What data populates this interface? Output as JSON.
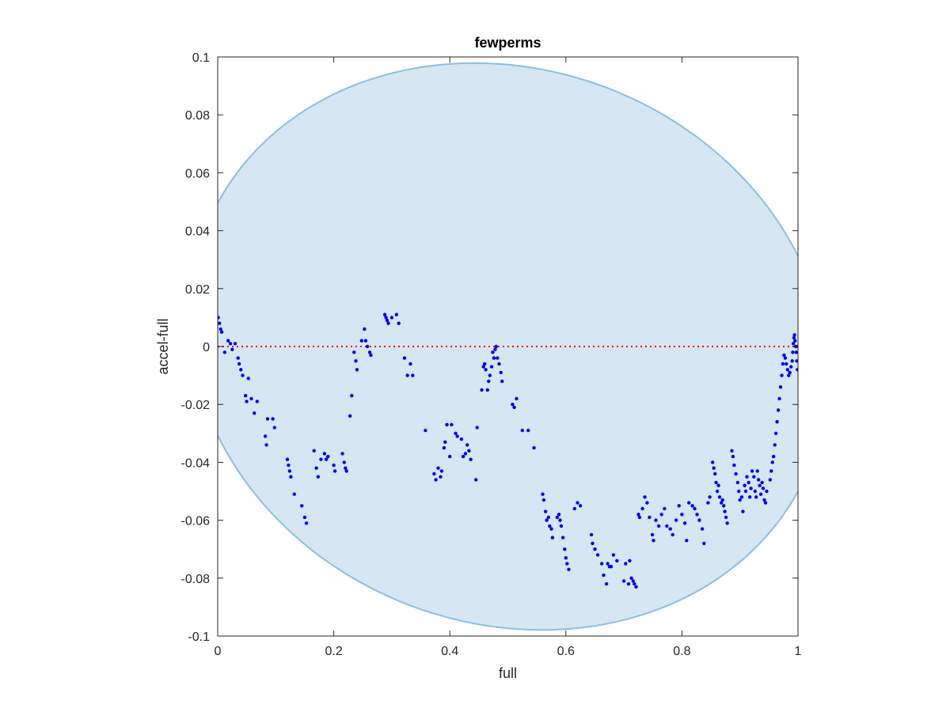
{
  "chart_data": {
    "type": "scatter",
    "title": "fewperms",
    "xlabel": "full",
    "ylabel": "accel-full",
    "xlim": [
      0,
      1
    ],
    "ylim": [
      -0.1,
      0.1
    ],
    "xticks": [
      0,
      0.2,
      0.4,
      0.6,
      0.8,
      1
    ],
    "xtick_labels": [
      "0",
      "0.2",
      "0.4",
      "0.6",
      "0.8",
      "1"
    ],
    "yticks": [
      -0.1,
      -0.08,
      -0.06,
      -0.04,
      -0.02,
      0,
      0.02,
      0.04,
      0.06,
      0.08,
      0.1
    ],
    "ytick_labels": [
      "-0.1",
      "-0.08",
      "-0.06",
      "-0.04",
      "-0.02",
      "0",
      "0.02",
      "0.04",
      "0.06",
      "0.08",
      "0.1"
    ],
    "grid": false,
    "legend": "none",
    "reference_line": {
      "y": 0,
      "style": "dotted",
      "color": "#ff0000"
    },
    "ellipse_region": {
      "fill": "#d6e6f2",
      "stroke": "#8cbfe0"
    },
    "marker_color": "#0000ee",
    "points": [
      [
        0.001,
        0.01
      ],
      [
        0.003,
        0.008
      ],
      [
        0.005,
        0.006
      ],
      [
        0.007,
        0.005
      ],
      [
        0.012,
        -0.002
      ],
      [
        0.018,
        0.002
      ],
      [
        0.022,
        0.001
      ],
      [
        0.025,
        -0.001
      ],
      [
        0.03,
        0.001
      ],
      [
        0.035,
        -0.004
      ],
      [
        0.037,
        -0.006
      ],
      [
        0.04,
        -0.008
      ],
      [
        0.043,
        -0.01
      ],
      [
        0.048,
        -0.017
      ],
      [
        0.05,
        -0.019
      ],
      [
        0.053,
        -0.011
      ],
      [
        0.058,
        -0.018
      ],
      [
        0.063,
        -0.023
      ],
      [
        0.068,
        -0.019
      ],
      [
        0.082,
        -0.031
      ],
      [
        0.084,
        -0.034
      ],
      [
        0.086,
        -0.025
      ],
      [
        0.095,
        -0.025
      ],
      [
        0.098,
        -0.028
      ],
      [
        0.12,
        -0.039
      ],
      [
        0.122,
        -0.041
      ],
      [
        0.124,
        -0.043
      ],
      [
        0.126,
        -0.045
      ],
      [
        0.132,
        -0.051
      ],
      [
        0.145,
        -0.055
      ],
      [
        0.15,
        -0.059
      ],
      [
        0.153,
        -0.061
      ],
      [
        0.166,
        -0.036
      ],
      [
        0.17,
        -0.042
      ],
      [
        0.173,
        -0.045
      ],
      [
        0.178,
        -0.039
      ],
      [
        0.184,
        -0.037
      ],
      [
        0.187,
        -0.039
      ],
      [
        0.19,
        -0.038
      ],
      [
        0.2,
        -0.041
      ],
      [
        0.202,
        -0.043
      ],
      [
        0.215,
        -0.037
      ],
      [
        0.218,
        -0.04
      ],
      [
        0.22,
        -0.042
      ],
      [
        0.222,
        -0.043
      ],
      [
        0.228,
        -0.024
      ],
      [
        0.231,
        -0.017
      ],
      [
        0.235,
        -0.002
      ],
      [
        0.238,
        -0.005
      ],
      [
        0.24,
        -0.008
      ],
      [
        0.248,
        0.002
      ],
      [
        0.253,
        0.006
      ],
      [
        0.255,
        0.002
      ],
      [
        0.258,
        0.0
      ],
      [
        0.262,
        -0.002
      ],
      [
        0.264,
        -0.003
      ],
      [
        0.288,
        0.011
      ],
      [
        0.29,
        0.01
      ],
      [
        0.292,
        0.009
      ],
      [
        0.294,
        0.008
      ],
      [
        0.3,
        0.01
      ],
      [
        0.308,
        0.011
      ],
      [
        0.312,
        0.008
      ],
      [
        0.322,
        -0.004
      ],
      [
        0.327,
        -0.01
      ],
      [
        0.332,
        -0.006
      ],
      [
        0.336,
        -0.01
      ],
      [
        0.358,
        -0.029
      ],
      [
        0.373,
        -0.044
      ],
      [
        0.376,
        -0.046
      ],
      [
        0.38,
        -0.042
      ],
      [
        0.384,
        -0.045
      ],
      [
        0.386,
        -0.043
      ],
      [
        0.39,
        -0.035
      ],
      [
        0.392,
        -0.033
      ],
      [
        0.395,
        -0.027
      ],
      [
        0.4,
        -0.038
      ],
      [
        0.403,
        -0.027
      ],
      [
        0.41,
        -0.03
      ],
      [
        0.413,
        -0.031
      ],
      [
        0.42,
        -0.032
      ],
      [
        0.423,
        -0.038
      ],
      [
        0.427,
        -0.037
      ],
      [
        0.43,
        -0.034
      ],
      [
        0.433,
        -0.036
      ],
      [
        0.436,
        -0.039
      ],
      [
        0.445,
        -0.046
      ],
      [
        0.447,
        -0.028
      ],
      [
        0.455,
        -0.015
      ],
      [
        0.458,
        -0.007
      ],
      [
        0.46,
        -0.006
      ],
      [
        0.462,
        -0.008
      ],
      [
        0.465,
        -0.015
      ],
      [
        0.467,
        -0.012
      ],
      [
        0.469,
        -0.01
      ],
      [
        0.472,
        -0.007
      ],
      [
        0.474,
        -0.002
      ],
      [
        0.476,
        -0.004
      ],
      [
        0.478,
        -0.001
      ],
      [
        0.48,
        0.0
      ],
      [
        0.482,
        -0.004
      ],
      [
        0.485,
        -0.006
      ],
      [
        0.488,
        -0.009
      ],
      [
        0.49,
        -0.012
      ],
      [
        0.508,
        -0.02
      ],
      [
        0.511,
        -0.021
      ],
      [
        0.515,
        -0.018
      ],
      [
        0.525,
        -0.029
      ],
      [
        0.535,
        -0.029
      ],
      [
        0.545,
        -0.035
      ],
      [
        0.56,
        -0.051
      ],
      [
        0.562,
        -0.053
      ],
      [
        0.565,
        -0.057
      ],
      [
        0.567,
        -0.06
      ],
      [
        0.57,
        -0.059
      ],
      [
        0.572,
        -0.062
      ],
      [
        0.575,
        -0.063
      ],
      [
        0.577,
        -0.066
      ],
      [
        0.585,
        -0.059
      ],
      [
        0.588,
        -0.058
      ],
      [
        0.59,
        -0.06
      ],
      [
        0.592,
        -0.062
      ],
      [
        0.595,
        -0.066
      ],
      [
        0.598,
        -0.07
      ],
      [
        0.6,
        -0.073
      ],
      [
        0.602,
        -0.075
      ],
      [
        0.605,
        -0.077
      ],
      [
        0.615,
        -0.056
      ],
      [
        0.62,
        -0.054
      ],
      [
        0.625,
        -0.055
      ],
      [
        0.644,
        -0.065
      ],
      [
        0.646,
        -0.068
      ],
      [
        0.65,
        -0.07
      ],
      [
        0.655,
        -0.072
      ],
      [
        0.662,
        -0.075
      ],
      [
        0.665,
        -0.079
      ],
      [
        0.67,
        -0.082
      ],
      [
        0.672,
        -0.075
      ],
      [
        0.675,
        -0.076
      ],
      [
        0.678,
        -0.076
      ],
      [
        0.682,
        -0.072
      ],
      [
        0.688,
        -0.074
      ],
      [
        0.7,
        -0.081
      ],
      [
        0.703,
        -0.075
      ],
      [
        0.708,
        -0.082
      ],
      [
        0.71,
        -0.074
      ],
      [
        0.713,
        -0.08
      ],
      [
        0.716,
        -0.081
      ],
      [
        0.718,
        -0.082
      ],
      [
        0.721,
        -0.083
      ],
      [
        0.725,
        -0.058
      ],
      [
        0.727,
        -0.059
      ],
      [
        0.732,
        -0.056
      ],
      [
        0.736,
        -0.052
      ],
      [
        0.74,
        -0.054
      ],
      [
        0.744,
        -0.059
      ],
      [
        0.749,
        -0.065
      ],
      [
        0.751,
        -0.067
      ],
      [
        0.755,
        -0.06
      ],
      [
        0.76,
        -0.062
      ],
      [
        0.765,
        -0.058
      ],
      [
        0.77,
        -0.056
      ],
      [
        0.774,
        -0.062
      ],
      [
        0.78,
        -0.063
      ],
      [
        0.784,
        -0.065
      ],
      [
        0.79,
        -0.06
      ],
      [
        0.795,
        -0.055
      ],
      [
        0.8,
        -0.058
      ],
      [
        0.805,
        -0.061
      ],
      [
        0.808,
        -0.067
      ],
      [
        0.812,
        -0.054
      ],
      [
        0.818,
        -0.055
      ],
      [
        0.822,
        -0.056
      ],
      [
        0.826,
        -0.058
      ],
      [
        0.83,
        -0.06
      ],
      [
        0.835,
        -0.063
      ],
      [
        0.838,
        -0.068
      ],
      [
        0.845,
        -0.054
      ],
      [
        0.848,
        -0.052
      ],
      [
        0.853,
        -0.04
      ],
      [
        0.855,
        -0.042
      ],
      [
        0.857,
        -0.044
      ],
      [
        0.859,
        -0.047
      ],
      [
        0.861,
        -0.05
      ],
      [
        0.863,
        -0.048
      ],
      [
        0.865,
        -0.052
      ],
      [
        0.868,
        -0.054
      ],
      [
        0.87,
        -0.053
      ],
      [
        0.872,
        -0.055
      ],
      [
        0.874,
        -0.057
      ],
      [
        0.876,
        -0.059
      ],
      [
        0.878,
        -0.061
      ],
      [
        0.886,
        -0.036
      ],
      [
        0.888,
        -0.038
      ],
      [
        0.89,
        -0.041
      ],
      [
        0.893,
        -0.044
      ],
      [
        0.896,
        -0.047
      ],
      [
        0.898,
        -0.05
      ],
      [
        0.9,
        -0.053
      ],
      [
        0.903,
        -0.052
      ],
      [
        0.905,
        -0.057
      ],
      [
        0.908,
        -0.048
      ],
      [
        0.91,
        -0.05
      ],
      [
        0.912,
        -0.045
      ],
      [
        0.915,
        -0.047
      ],
      [
        0.917,
        -0.052
      ],
      [
        0.919,
        -0.049
      ],
      [
        0.921,
        -0.043
      ],
      [
        0.924,
        -0.045
      ],
      [
        0.926,
        -0.05
      ],
      [
        0.928,
        -0.052
      ],
      [
        0.93,
        -0.043
      ],
      [
        0.932,
        -0.046
      ],
      [
        0.934,
        -0.048
      ],
      [
        0.936,
        -0.051
      ],
      [
        0.938,
        -0.047
      ],
      [
        0.94,
        -0.049
      ],
      [
        0.942,
        -0.053
      ],
      [
        0.944,
        -0.054
      ],
      [
        0.946,
        -0.05
      ],
      [
        0.952,
        -0.046
      ],
      [
        0.954,
        -0.043
      ],
      [
        0.956,
        -0.04
      ],
      [
        0.958,
        -0.038
      ],
      [
        0.96,
        -0.034
      ],
      [
        0.962,
        -0.03
      ],
      [
        0.964,
        -0.026
      ],
      [
        0.966,
        -0.022
      ],
      [
        0.968,
        -0.018
      ],
      [
        0.97,
        -0.014
      ],
      [
        0.972,
        -0.01
      ],
      [
        0.974,
        -0.006
      ],
      [
        0.976,
        -0.003
      ],
      [
        0.978,
        -0.004
      ],
      [
        0.98,
        -0.006
      ],
      [
        0.982,
        -0.008
      ],
      [
        0.984,
        -0.01
      ],
      [
        0.986,
        -0.009
      ],
      [
        0.988,
        -0.007
      ],
      [
        0.99,
        -0.005
      ],
      [
        0.991,
        -0.002
      ],
      [
        0.992,
        0.001
      ],
      [
        0.993,
        0.003
      ],
      [
        0.994,
        0.004
      ],
      [
        0.995,
        0.002
      ],
      [
        0.996,
        0.0
      ],
      [
        0.997,
        -0.002
      ],
      [
        0.998,
        -0.005
      ],
      [
        0.999,
        -0.008
      ],
      [
        1.0,
        0.0
      ]
    ]
  }
}
